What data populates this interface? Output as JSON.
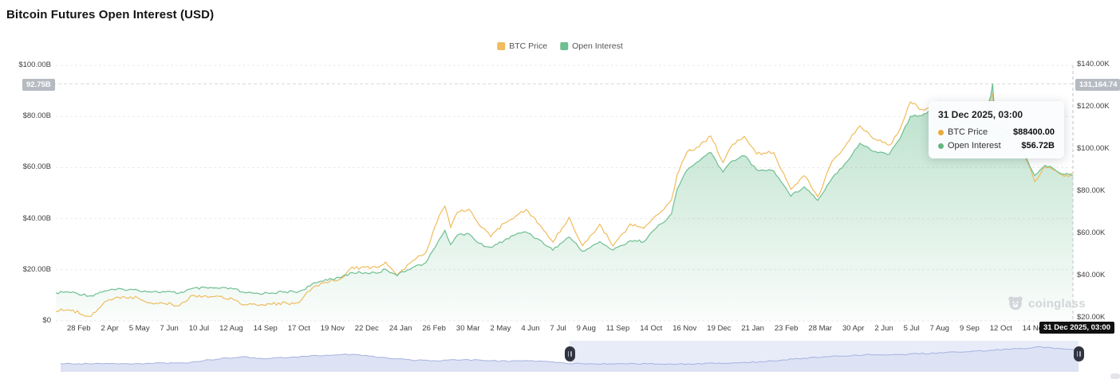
{
  "title": "Bitcoin Futures Open Interest (USD)",
  "legend": [
    {
      "label": "BTC Price",
      "color": "#efbc5e"
    },
    {
      "label": "Open Interest",
      "color": "#6fbf92"
    }
  ],
  "left_axis_high_badge": "92.75B",
  "right_axis_high_badge": "131,164.74",
  "crosshair_date_badge": "31 Dec 2025, 03:00",
  "tooltip": {
    "title": "31 Dec 2025, 03:00",
    "rows": [
      {
        "name": "BTC Price",
        "value": "$88400.00",
        "color": "#e8a93c"
      },
      {
        "name": "Open Interest",
        "value": "$56.72B",
        "color": "#67b57d"
      }
    ]
  },
  "watermark": "coinglass",
  "chart_data": {
    "type": "line",
    "title": "Bitcoin Futures Open Interest (USD)",
    "x_range": [
      "2023-02-01",
      "2025-12-31"
    ],
    "left_axis": {
      "unit": "USD billions",
      "lim": [
        0,
        100
      ],
      "ticks": [
        {
          "text": "$100.00B",
          "value": 100
        },
        {
          "text": "$80.00B",
          "value": 80
        },
        {
          "text": "$60.00B",
          "value": 60
        },
        {
          "text": "$40.00B",
          "value": 40
        },
        {
          "text": "$20.00B",
          "value": 20
        },
        {
          "text": "$0",
          "value": 0
        }
      ],
      "high_line_value": 92.75
    },
    "right_axis": {
      "unit": "USD thousands",
      "lim": [
        20,
        140
      ],
      "ticks": [
        {
          "text": "$140.00K",
          "value": 140
        },
        {
          "text": "$120.00K",
          "value": 120
        },
        {
          "text": "$100.00K",
          "value": 100
        },
        {
          "text": "$80.00K",
          "value": 80
        },
        {
          "text": "$60.00K",
          "value": 60
        },
        {
          "text": "$40.00K",
          "value": 40
        },
        {
          "text": "$20.00K",
          "value": 20
        }
      ],
      "high_line_value": 131.16474
    },
    "x_tick_labels": [
      "28 Feb",
      "2 Apr",
      "5 May",
      "7 Jun",
      "10 Jul",
      "12 Aug",
      "14 Sep",
      "17 Oct",
      "19 Nov",
      "22 Dec",
      "24 Jan",
      "26 Feb",
      "30 Mar",
      "2 May",
      "4 Jun",
      "7 Jul",
      "9 Aug",
      "11 Sep",
      "14 Oct",
      "16 Nov",
      "19 Dec",
      "21 Jan",
      "23 Feb",
      "28 Mar",
      "30 Apr",
      "2 Jun",
      "5 Jul",
      "7 Aug",
      "9 Sep",
      "12 Oct",
      "14 Nov"
    ],
    "dates": [
      "2023-02-01",
      "2023-02-14",
      "2023-03-10",
      "2023-03-24",
      "2023-04-12",
      "2023-04-28",
      "2023-05-12",
      "2023-05-26",
      "2023-06-10",
      "2023-06-24",
      "2023-07-08",
      "2023-07-22",
      "2023-08-05",
      "2023-08-18",
      "2023-09-01",
      "2023-09-15",
      "2023-09-29",
      "2023-10-13",
      "2023-10-27",
      "2023-11-10",
      "2023-11-24",
      "2023-12-08",
      "2023-12-22",
      "2024-01-05",
      "2024-01-12",
      "2024-01-24",
      "2024-02-09",
      "2024-02-23",
      "2024-03-08",
      "2024-03-14",
      "2024-03-20",
      "2024-03-27",
      "2024-04-08",
      "2024-04-19",
      "2024-05-01",
      "2024-05-15",
      "2024-05-27",
      "2024-06-07",
      "2024-06-21",
      "2024-07-05",
      "2024-07-22",
      "2024-08-05",
      "2024-08-23",
      "2024-09-06",
      "2024-09-24",
      "2024-10-08",
      "2024-10-21",
      "2024-11-06",
      "2024-11-12",
      "2024-11-22",
      "2024-12-05",
      "2024-12-17",
      "2024-12-30",
      "2025-01-07",
      "2025-01-21",
      "2025-02-03",
      "2025-02-21",
      "2025-03-11",
      "2025-03-25",
      "2025-04-08",
      "2025-04-23",
      "2025-05-09",
      "2025-05-22",
      "2025-06-05",
      "2025-06-22",
      "2025-07-03",
      "2025-07-14",
      "2025-07-28",
      "2025-08-13",
      "2025-08-29",
      "2025-09-12",
      "2025-09-26",
      "2025-10-06",
      "2025-10-08",
      "2025-10-11",
      "2025-10-24",
      "2025-11-07",
      "2025-11-21",
      "2025-12-02",
      "2025-12-12",
      "2025-12-22",
      "2025-12-31"
    ],
    "series": [
      {
        "name": "BTC Price",
        "axis": "right",
        "color": "#efbc5e",
        "unit": "K USD",
        "values": [
          23.1,
          23.9,
          20.6,
          27.6,
          30.0,
          29.3,
          27.0,
          26.8,
          25.8,
          30.6,
          30.3,
          29.9,
          29.1,
          26.1,
          25.9,
          26.5,
          27.0,
          26.8,
          34.0,
          37.0,
          37.8,
          43.8,
          43.7,
          44.0,
          46.2,
          40.0,
          47.2,
          51.0,
          68.3,
          73.1,
          62.8,
          70.0,
          71.6,
          63.8,
          58.3,
          65.0,
          68.4,
          71.1,
          64.1,
          55.9,
          67.5,
          54.0,
          64.1,
          54.2,
          64.3,
          62.3,
          68.4,
          75.6,
          88.0,
          98.5,
          101.2,
          106.1,
          93.7,
          101.0,
          105.9,
          97.8,
          98.3,
          80.7,
          87.5,
          77.1,
          93.9,
          102.9,
          110.7,
          104.9,
          101.5,
          109.6,
          122.1,
          118.2,
          122.5,
          108.5,
          115.8,
          109.3,
          124.5,
          126.2,
          111.5,
          110.9,
          101.5,
          84.6,
          91.4,
          89.9,
          86.9,
          88.4
        ]
      },
      {
        "name": "Open Interest",
        "axis": "left",
        "color": "#6fbf92",
        "area": true,
        "unit": "B USD",
        "values": [
          11.0,
          11.3,
          9.8,
          11.8,
          12.4,
          12.0,
          11.4,
          11.3,
          10.9,
          12.6,
          12.9,
          12.7,
          12.6,
          10.9,
          10.7,
          11.0,
          11.3,
          11.4,
          14.2,
          16.2,
          16.8,
          18.9,
          18.8,
          18.9,
          20.3,
          17.8,
          21.0,
          22.6,
          31.8,
          35.3,
          30.0,
          33.6,
          34.2,
          30.2,
          28.6,
          31.5,
          33.8,
          34.9,
          31.6,
          27.8,
          32.9,
          27.2,
          30.9,
          27.7,
          31.4,
          31.1,
          36.3,
          41.7,
          51.6,
          58.9,
          62.7,
          65.9,
          58.2,
          62.3,
          64.8,
          59.1,
          58.8,
          48.9,
          52.6,
          47.2,
          55.9,
          62.6,
          69.5,
          66.4,
          65.3,
          71.4,
          79.9,
          80.9,
          84.8,
          75.3,
          80.1,
          77.4,
          88.0,
          92.75,
          76.5,
          73.9,
          67.8,
          56.9,
          60.8,
          59.3,
          57.4,
          56.72
        ]
      }
    ],
    "last_point": {
      "date": "31 Dec 2025, 03:00",
      "btc_price": 88400.0,
      "open_interest_b": 56.72
    },
    "navigator": {
      "window": [
        0.5,
        1.0
      ],
      "x": [
        0,
        0.03,
        0.06,
        0.09,
        0.12,
        0.14,
        0.16,
        0.18,
        0.2,
        0.22,
        0.24,
        0.26,
        0.28,
        0.3,
        0.32,
        0.34,
        0.36,
        0.38,
        0.4,
        0.42,
        0.44,
        0.46,
        0.48,
        0.5,
        0.52,
        0.54,
        0.56,
        0.58,
        0.6,
        0.62,
        0.64,
        0.66,
        0.68,
        0.7,
        0.72,
        0.74,
        0.76,
        0.78,
        0.8,
        0.82,
        0.84,
        0.86,
        0.88,
        0.9,
        0.92,
        0.94,
        0.95,
        0.96,
        0.97,
        0.98,
        0.99,
        1.0
      ],
      "v": [
        0.26,
        0.27,
        0.26,
        0.28,
        0.3,
        0.38,
        0.48,
        0.52,
        0.46,
        0.5,
        0.55,
        0.58,
        0.62,
        0.57,
        0.48,
        0.42,
        0.38,
        0.4,
        0.42,
        0.38,
        0.36,
        0.38,
        0.34,
        0.28,
        0.26,
        0.27,
        0.28,
        0.26,
        0.25,
        0.27,
        0.28,
        0.3,
        0.33,
        0.38,
        0.44,
        0.5,
        0.55,
        0.58,
        0.62,
        0.6,
        0.63,
        0.66,
        0.7,
        0.74,
        0.78,
        0.82,
        0.85,
        0.88,
        0.86,
        0.84,
        0.8,
        0.78
      ]
    }
  }
}
